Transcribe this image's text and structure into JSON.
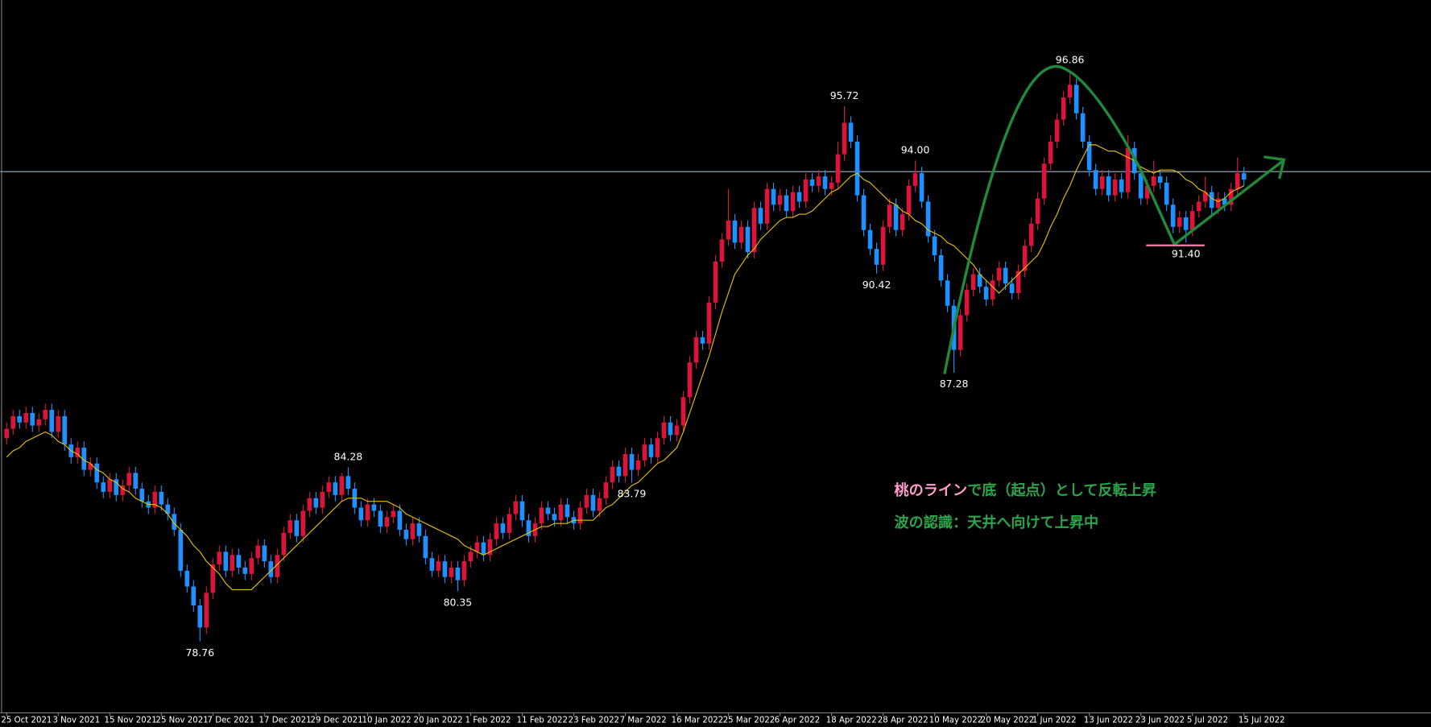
{
  "chart_data": {
    "type": "candlestick",
    "xlim": [
      -1,
      221
    ],
    "ylim": [
      76.51,
      99.09
    ],
    "up_color": "#dc143c",
    "down_color": "#1e90ff",
    "ma_color": "#e6c000",
    "horizontal_line": 93.65,
    "horizontal_line_color": "#9fb3c8",
    "xticks": [
      {
        "value": 0,
        "label": "25 Oct 2021"
      },
      {
        "value": 8,
        "label": "3 Nov 2021"
      },
      {
        "value": 16,
        "label": "15 Nov 2021"
      },
      {
        "value": 24,
        "label": "25 Nov 2021"
      },
      {
        "value": 32,
        "label": "7 Dec 2021"
      },
      {
        "value": 40,
        "label": "17 Dec 2021"
      },
      {
        "value": 48,
        "label": "29 Dec 2021"
      },
      {
        "value": 56,
        "label": "10 Jan 2022"
      },
      {
        "value": 64,
        "label": "20 Jan 2022"
      },
      {
        "value": 72,
        "label": "1 Feb 2022"
      },
      {
        "value": 80,
        "label": "11 Feb 2022"
      },
      {
        "value": 88,
        "label": "23 Feb 2022"
      },
      {
        "value": 96,
        "label": "7 Mar 2022"
      },
      {
        "value": 104,
        "label": "16 Mar 2022"
      },
      {
        "value": 112,
        "label": "25 Mar 2022"
      },
      {
        "value": 120,
        "label": "6 Apr 2022"
      },
      {
        "value": 128,
        "label": "18 Apr 2022"
      },
      {
        "value": 136,
        "label": "28 Apr 2022"
      },
      {
        "value": 144,
        "label": "10 May 2022"
      },
      {
        "value": 152,
        "label": "20 May 2022"
      },
      {
        "value": 160,
        "label": "1 Jun 2022"
      },
      {
        "value": 168,
        "label": "13 Jun 2022"
      },
      {
        "value": 176,
        "label": "23 Jun 2022"
      },
      {
        "value": 184,
        "label": "5 Jul 2022"
      },
      {
        "value": 192,
        "label": "15 Jul 2022"
      }
    ],
    "candles": [
      [
        85.2,
        85.7,
        85.0,
        85.5
      ],
      [
        85.5,
        86.1,
        85.3,
        85.9
      ],
      [
        85.9,
        86.1,
        85.5,
        85.7
      ],
      [
        85.7,
        86.2,
        85.5,
        86.0
      ],
      [
        86.0,
        86.2,
        85.4,
        85.6
      ],
      [
        85.6,
        86.0,
        85.4,
        85.8
      ],
      [
        85.8,
        86.3,
        85.6,
        86.1
      ],
      [
        86.1,
        86.3,
        85.2,
        85.4
      ],
      [
        85.4,
        86.1,
        85.2,
        85.9
      ],
      [
        85.9,
        86.1,
        84.8,
        85.0
      ],
      [
        85.0,
        85.2,
        84.4,
        84.6
      ],
      [
        84.6,
        85.1,
        84.4,
        84.9
      ],
      [
        84.9,
        85.1,
        84.0,
        84.2
      ],
      [
        84.2,
        84.6,
        84.0,
        84.4
      ],
      [
        84.4,
        84.6,
        83.6,
        83.8
      ],
      [
        83.8,
        84.0,
        83.3,
        83.5
      ],
      [
        83.5,
        84.1,
        83.3,
        83.9
      ],
      [
        83.9,
        84.1,
        83.2,
        83.4
      ],
      [
        83.4,
        83.9,
        83.2,
        83.7
      ],
      [
        83.7,
        84.3,
        83.5,
        84.1
      ],
      [
        84.1,
        84.3,
        83.4,
        83.6
      ],
      [
        83.6,
        83.8,
        83.0,
        83.2
      ],
      [
        83.2,
        83.4,
        82.8,
        83.0
      ],
      [
        83.0,
        83.7,
        82.8,
        83.5
      ],
      [
        83.5,
        83.7,
        82.9,
        83.1
      ],
      [
        83.1,
        83.3,
        82.6,
        82.8
      ],
      [
        82.8,
        83.0,
        82.1,
        82.3
      ],
      [
        82.3,
        82.5,
        80.8,
        81.0
      ],
      [
        81.0,
        81.2,
        80.3,
        80.5
      ],
      [
        80.5,
        80.7,
        79.7,
        79.9
      ],
      [
        79.9,
        80.1,
        78.76,
        79.2
      ],
      [
        79.2,
        80.5,
        79.0,
        80.3
      ],
      [
        80.3,
        81.4,
        80.1,
        81.2
      ],
      [
        81.2,
        81.8,
        81.0,
        81.6
      ],
      [
        81.6,
        81.8,
        80.8,
        81.0
      ],
      [
        81.0,
        81.7,
        80.8,
        81.5
      ],
      [
        81.5,
        81.7,
        80.9,
        81.1
      ],
      [
        81.1,
        81.3,
        80.7,
        80.9
      ],
      [
        80.9,
        81.6,
        80.7,
        81.4
      ],
      [
        81.4,
        82.0,
        81.2,
        81.8
      ],
      [
        81.8,
        82.0,
        81.1,
        81.3
      ],
      [
        81.3,
        81.5,
        80.6,
        80.8
      ],
      [
        80.8,
        81.7,
        80.6,
        81.5
      ],
      [
        81.5,
        82.4,
        81.3,
        82.2
      ],
      [
        82.2,
        82.8,
        82.0,
        82.6
      ],
      [
        82.6,
        82.8,
        81.9,
        82.1
      ],
      [
        82.1,
        83.1,
        81.9,
        82.9
      ],
      [
        82.9,
        83.5,
        82.7,
        83.3
      ],
      [
        83.3,
        83.5,
        82.8,
        83.0
      ],
      [
        83.0,
        83.7,
        82.8,
        83.5
      ],
      [
        83.5,
        84.0,
        83.3,
        83.8
      ],
      [
        83.8,
        84.0,
        83.2,
        83.4
      ],
      [
        83.4,
        84.1,
        83.2,
        84.0
      ],
      [
        84.0,
        84.28,
        83.4,
        83.6
      ],
      [
        83.6,
        83.8,
        82.8,
        83.0
      ],
      [
        83.0,
        83.2,
        82.4,
        82.6
      ],
      [
        82.6,
        83.3,
        82.4,
        83.1
      ],
      [
        83.1,
        83.3,
        82.7,
        82.9
      ],
      [
        82.9,
        83.1,
        82.2,
        82.4
      ],
      [
        82.4,
        82.9,
        82.2,
        82.7
      ],
      [
        82.7,
        83.1,
        82.5,
        82.9
      ],
      [
        82.9,
        83.1,
        82.1,
        82.3
      ],
      [
        82.3,
        82.5,
        81.8,
        82.0
      ],
      [
        82.0,
        82.7,
        81.8,
        82.5
      ],
      [
        82.5,
        82.7,
        81.9,
        82.1
      ],
      [
        82.1,
        82.3,
        81.2,
        81.4
      ],
      [
        81.4,
        81.6,
        80.8,
        81.0
      ],
      [
        81.0,
        81.5,
        80.8,
        81.3
      ],
      [
        81.3,
        81.5,
        80.6,
        80.8
      ],
      [
        80.8,
        81.3,
        80.6,
        81.1
      ],
      [
        81.1,
        81.3,
        80.35,
        80.7
      ],
      [
        80.7,
        81.5,
        80.5,
        81.3
      ],
      [
        81.3,
        81.8,
        81.1,
        81.6
      ],
      [
        81.6,
        82.1,
        81.4,
        81.9
      ],
      [
        81.9,
        82.1,
        81.3,
        81.5
      ],
      [
        81.5,
        82.2,
        81.3,
        82.0
      ],
      [
        82.0,
        82.7,
        81.8,
        82.5
      ],
      [
        82.5,
        82.7,
        82.0,
        82.2
      ],
      [
        82.2,
        83.0,
        82.0,
        82.8
      ],
      [
        82.8,
        83.4,
        82.6,
        83.2
      ],
      [
        83.2,
        83.4,
        82.4,
        82.6
      ],
      [
        82.6,
        82.8,
        81.9,
        82.1
      ],
      [
        82.1,
        82.7,
        81.9,
        82.5
      ],
      [
        82.5,
        83.2,
        82.3,
        83.0
      ],
      [
        83.0,
        83.2,
        82.6,
        82.8
      ],
      [
        82.8,
        83.0,
        82.4,
        82.6
      ],
      [
        82.6,
        83.3,
        82.4,
        83.1
      ],
      [
        83.1,
        83.3,
        82.5,
        82.7
      ],
      [
        82.7,
        82.9,
        82.3,
        82.5
      ],
      [
        82.5,
        83.2,
        82.3,
        83.0
      ],
      [
        83.0,
        83.6,
        82.8,
        83.4
      ],
      [
        83.4,
        83.6,
        82.7,
        82.9
      ],
      [
        82.9,
        83.5,
        82.7,
        83.3
      ],
      [
        83.3,
        84.0,
        83.1,
        83.8
      ],
      [
        83.8,
        84.5,
        83.6,
        84.3
      ],
      [
        84.3,
        84.5,
        83.8,
        84.0
      ],
      [
        84.0,
        84.9,
        83.8,
        84.7
      ],
      [
        84.7,
        84.9,
        83.79,
        84.2
      ],
      [
        84.2,
        84.7,
        84.0,
        84.5
      ],
      [
        84.5,
        85.2,
        84.3,
        85.0
      ],
      [
        85.0,
        85.2,
        84.4,
        84.6
      ],
      [
        84.6,
        85.4,
        84.4,
        85.2
      ],
      [
        85.2,
        85.9,
        85.0,
        85.7
      ],
      [
        85.7,
        85.9,
        85.1,
        85.3
      ],
      [
        85.3,
        85.8,
        85.1,
        85.6
      ],
      [
        85.6,
        86.7,
        85.4,
        86.5
      ],
      [
        86.5,
        87.8,
        86.3,
        87.6
      ],
      [
        87.6,
        88.6,
        87.4,
        88.4
      ],
      [
        88.4,
        88.6,
        88.0,
        88.2
      ],
      [
        88.2,
        89.7,
        88.0,
        89.5
      ],
      [
        89.5,
        91.0,
        89.3,
        90.8
      ],
      [
        90.8,
        91.7,
        90.6,
        91.5
      ],
      [
        91.5,
        93.1,
        91.3,
        92.1
      ],
      [
        92.1,
        92.3,
        91.2,
        91.4
      ],
      [
        91.4,
        92.1,
        91.2,
        91.9
      ],
      [
        91.9,
        92.1,
        90.9,
        91.1
      ],
      [
        91.1,
        92.7,
        90.9,
        92.5
      ],
      [
        92.5,
        92.7,
        91.8,
        92.0
      ],
      [
        92.0,
        93.3,
        91.8,
        93.1
      ],
      [
        93.1,
        93.3,
        92.4,
        92.6
      ],
      [
        92.6,
        93.1,
        92.4,
        92.9
      ],
      [
        92.9,
        93.1,
        92.2,
        92.4
      ],
      [
        92.4,
        93.2,
        92.2,
        93.0
      ],
      [
        93.0,
        93.2,
        92.5,
        92.7
      ],
      [
        92.7,
        93.6,
        92.5,
        93.4
      ],
      [
        93.4,
        93.6,
        93.0,
        93.2
      ],
      [
        93.2,
        93.7,
        93.0,
        93.5
      ],
      [
        93.5,
        93.7,
        92.9,
        93.1
      ],
      [
        93.1,
        93.5,
        92.9,
        93.3
      ],
      [
        93.3,
        94.6,
        93.1,
        94.2
      ],
      [
        94.2,
        95.72,
        94.0,
        95.2
      ],
      [
        95.2,
        95.4,
        94.4,
        94.6
      ],
      [
        94.6,
        94.8,
        92.7,
        92.9
      ],
      [
        92.9,
        93.1,
        91.6,
        91.8
      ],
      [
        91.8,
        92.0,
        91.0,
        91.2
      ],
      [
        91.2,
        91.4,
        90.42,
        90.7
      ],
      [
        90.7,
        92.1,
        90.5,
        91.9
      ],
      [
        91.9,
        92.8,
        91.7,
        92.6
      ],
      [
        92.6,
        92.8,
        91.6,
        91.8
      ],
      [
        91.8,
        92.5,
        91.6,
        92.3
      ],
      [
        92.3,
        93.4,
        92.1,
        93.2
      ],
      [
        93.2,
        94.0,
        93.0,
        93.6
      ],
      [
        93.6,
        93.8,
        92.5,
        92.7
      ],
      [
        92.7,
        92.9,
        91.4,
        91.6
      ],
      [
        91.6,
        91.8,
        90.8,
        91.0
      ],
      [
        91.0,
        91.2,
        90.0,
        90.2
      ],
      [
        90.2,
        90.4,
        89.2,
        89.4
      ],
      [
        89.4,
        89.6,
        87.28,
        88.0
      ],
      [
        88.0,
        89.3,
        87.8,
        89.1
      ],
      [
        89.1,
        90.1,
        88.9,
        89.9
      ],
      [
        89.9,
        90.6,
        89.7,
        90.4
      ],
      [
        90.4,
        90.6,
        89.8,
        90.0
      ],
      [
        90.0,
        90.2,
        89.4,
        89.6
      ],
      [
        89.6,
        90.4,
        89.4,
        90.2
      ],
      [
        90.2,
        90.8,
        90.0,
        90.6
      ],
      [
        90.6,
        90.8,
        89.9,
        90.1
      ],
      [
        90.1,
        90.3,
        89.6,
        89.8
      ],
      [
        89.8,
        90.7,
        89.6,
        90.5
      ],
      [
        90.5,
        91.5,
        90.3,
        91.3
      ],
      [
        91.3,
        92.2,
        91.1,
        92.0
      ],
      [
        92.0,
        93.0,
        91.8,
        92.8
      ],
      [
        92.8,
        94.1,
        92.6,
        93.9
      ],
      [
        93.9,
        94.8,
        93.7,
        94.6
      ],
      [
        94.6,
        95.5,
        94.4,
        95.3
      ],
      [
        95.3,
        96.2,
        95.1,
        96.0
      ],
      [
        96.0,
        96.86,
        95.8,
        96.4
      ],
      [
        96.4,
        96.6,
        95.3,
        95.5
      ],
      [
        95.5,
        95.7,
        94.4,
        94.6
      ],
      [
        94.6,
        94.8,
        93.5,
        93.7
      ],
      [
        93.7,
        93.9,
        92.9,
        93.1
      ],
      [
        93.1,
        93.7,
        92.9,
        93.5
      ],
      [
        93.5,
        93.7,
        92.7,
        92.9
      ],
      [
        92.9,
        93.6,
        92.7,
        93.4
      ],
      [
        93.4,
        93.6,
        92.8,
        93.0
      ],
      [
        93.0,
        94.8,
        92.8,
        94.4
      ],
      [
        94.4,
        94.6,
        93.4,
        93.6
      ],
      [
        93.6,
        93.8,
        92.6,
        92.8
      ],
      [
        92.8,
        93.4,
        92.6,
        93.2
      ],
      [
        93.2,
        94.0,
        93.0,
        93.5
      ],
      [
        93.5,
        93.7,
        93.1,
        93.3
      ],
      [
        93.3,
        93.5,
        92.4,
        92.6
      ],
      [
        92.6,
        92.8,
        91.7,
        91.9
      ],
      [
        91.9,
        92.4,
        91.7,
        92.2
      ],
      [
        92.2,
        92.4,
        91.4,
        91.8
      ],
      [
        91.8,
        92.6,
        91.6,
        92.4
      ],
      [
        92.4,
        92.9,
        92.2,
        92.7
      ],
      [
        92.7,
        93.5,
        92.5,
        93.0
      ],
      [
        93.0,
        93.2,
        92.3,
        92.5
      ],
      [
        92.5,
        93.0,
        92.3,
        92.8
      ],
      [
        92.8,
        93.0,
        92.4,
        92.6
      ],
      [
        92.6,
        93.3,
        92.4,
        93.1
      ],
      [
        93.1,
        94.1,
        92.9,
        93.6
      ],
      [
        93.6,
        93.8,
        93.2,
        93.4
      ]
    ],
    "ma_values": [
      84.6,
      84.8,
      84.9,
      85.1,
      85.2,
      85.3,
      85.4,
      85.3,
      85.1,
      85.0,
      84.8,
      84.7,
      84.5,
      84.4,
      84.2,
      84.1,
      83.9,
      83.8,
      83.6,
      83.5,
      83.3,
      83.2,
      83.1,
      83.1,
      83.0,
      82.8,
      82.5,
      82.3,
      82.1,
      81.8,
      81.6,
      81.3,
      81.1,
      80.9,
      80.6,
      80.4,
      80.4,
      80.4,
      80.4,
      80.6,
      80.8,
      81.0,
      81.2,
      81.4,
      81.6,
      81.8,
      82.0,
      82.2,
      82.4,
      82.6,
      82.8,
      83.0,
      83.2,
      83.3,
      83.3,
      83.3,
      83.2,
      83.2,
      83.2,
      83.2,
      83.1,
      83.0,
      82.8,
      82.7,
      82.6,
      82.5,
      82.4,
      82.3,
      82.2,
      82.1,
      82.0,
      81.8,
      81.7,
      81.6,
      81.5,
      81.6,
      81.7,
      81.8,
      81.9,
      82.0,
      82.1,
      82.2,
      82.3,
      82.4,
      82.4,
      82.5,
      82.5,
      82.5,
      82.6,
      82.6,
      82.6,
      82.6,
      82.8,
      83.0,
      83.1,
      83.3,
      83.5,
      83.7,
      83.8,
      84.0,
      84.2,
      84.4,
      84.5,
      84.7,
      84.9,
      85.4,
      86.0,
      86.6,
      87.2,
      87.8,
      88.5,
      89.2,
      89.8,
      90.4,
      90.7,
      91.0,
      91.2,
      91.5,
      91.7,
      91.9,
      92.1,
      92.2,
      92.2,
      92.3,
      92.3,
      92.4,
      92.6,
      92.8,
      93.0,
      93.1,
      93.3,
      93.5,
      93.6,
      93.4,
      93.3,
      93.1,
      92.9,
      92.7,
      92.6,
      92.4,
      92.3,
      92.1,
      92.0,
      91.8,
      91.7,
      91.6,
      91.4,
      91.3,
      91.1,
      90.9,
      90.7,
      90.4,
      90.2,
      90.0,
      89.8,
      90.0,
      90.2,
      90.4,
      90.6,
      90.8,
      91.0,
      91.4,
      91.9,
      92.3,
      92.8,
      93.2,
      93.7,
      94.1,
      94.5,
      94.5,
      94.4,
      94.3,
      94.3,
      94.2,
      94.1,
      94.0,
      93.8,
      93.7,
      93.6,
      93.7,
      93.7,
      93.7,
      93.6,
      93.4,
      93.3,
      93.1,
      93.0,
      92.8,
      92.7,
      92.8,
      93.0,
      93.1,
      93.2
    ],
    "extreme_labels": [
      {
        "candle": 30,
        "value": 78.76,
        "label": "78.76"
      },
      {
        "candle": 53,
        "value": 84.28,
        "label": "84.28"
      },
      {
        "candle": 70,
        "value": 80.35,
        "label": "80.35"
      },
      {
        "candle": 97,
        "value": 83.79,
        "label": "83.79"
      },
      {
        "candle": 130,
        "value": 95.72,
        "label": "95.72"
      },
      {
        "candle": 135,
        "value": 90.42,
        "label": "90.42"
      },
      {
        "candle": 141,
        "value": 94.0,
        "label": "94.00"
      },
      {
        "candle": 147,
        "value": 87.28,
        "label": "87.28"
      },
      {
        "candle": 165,
        "value": 96.86,
        "label": "96.86"
      },
      {
        "candle": 183,
        "value": 91.4,
        "label": "91.40"
      }
    ],
    "annotations": [
      {
        "segments": [
          {
            "text": "桃のライン",
            "color": "#ff9ec8"
          },
          {
            "text": "で底（起点）として反転上昇",
            "color": "#2aa54a"
          }
        ]
      },
      {
        "segments": [
          {
            "text": "波の認識：天井へ向けて上昇中",
            "color": "#2aa54a"
          }
        ]
      }
    ]
  }
}
